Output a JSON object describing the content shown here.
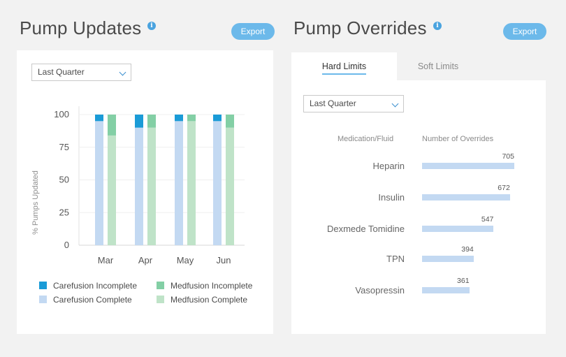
{
  "left_panel": {
    "title": "Pump Updates",
    "info": "i",
    "export_label": "Export",
    "period": "Last Quarter"
  },
  "right_panel": {
    "title": "Pump Overrides",
    "info": "i",
    "export_label": "Export",
    "tabs": [
      {
        "label": "Hard Limits",
        "active": true
      },
      {
        "label": "Soft Limits",
        "active": false
      }
    ],
    "period": "Last Quarter",
    "col_medication": "Medication/Fluid",
    "col_overrides": "Number of Overrides"
  },
  "colors": {
    "carefusion_incomplete": "#1a9bd7",
    "carefusion_complete": "#c3d9f2",
    "medfusion_incomplete": "#83cfa5",
    "medfusion_complete": "#bfe3c8"
  },
  "chart_data": [
    {
      "type": "bar",
      "stacked": true,
      "ylabel": "% Pumps Updated",
      "ylim": [
        0,
        100
      ],
      "yticks": [
        100,
        75,
        50,
        25,
        0
      ],
      "categories": [
        "Mar",
        "Apr",
        "May",
        "Jun"
      ],
      "groups": [
        "Carefusion",
        "Medfusion"
      ],
      "series": [
        {
          "name": "Carefusion Complete",
          "group": "Carefusion",
          "values": [
            95,
            90,
            95,
            95
          ]
        },
        {
          "name": "Carefusion Incomplete",
          "group": "Carefusion",
          "values": [
            5,
            10,
            5,
            5
          ]
        },
        {
          "name": "Medfusion Complete",
          "group": "Medfusion",
          "values": [
            84,
            90,
            95,
            90
          ]
        },
        {
          "name": "Medfusion Incomplete",
          "group": "Medfusion",
          "values": [
            16,
            10,
            5,
            10
          ]
        }
      ],
      "legend": [
        {
          "name": "Carefusion Incomplete",
          "color": "#1a9bd7"
        },
        {
          "name": "Medfusion Incomplete",
          "color": "#83cfa5"
        },
        {
          "name": "Carefusion Complete",
          "color": "#c3d9f2"
        },
        {
          "name": "Medfusion Complete",
          "color": "#bfe3c8"
        }
      ],
      "legend_position": "bottom",
      "grid": true
    },
    {
      "type": "bar",
      "orientation": "horizontal",
      "categories": [
        "Heparin",
        "Insulin",
        "Dexmede Tomidine",
        "TPN",
        "Vasopressin"
      ],
      "values": [
        705,
        672,
        547,
        394,
        361
      ],
      "xlim": [
        0,
        705
      ]
    }
  ]
}
